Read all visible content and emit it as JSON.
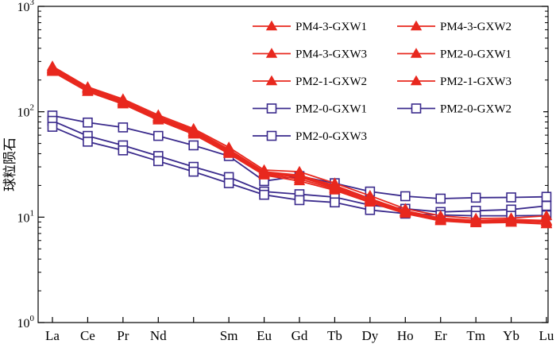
{
  "chart_data": {
    "type": "line",
    "ylabel": "球粒陨石",
    "yscale": "log",
    "ylim": [
      1,
      1000
    ],
    "yticks": [
      {
        "value": 1,
        "base": "10",
        "exp": "0"
      },
      {
        "value": 10,
        "base": "10",
        "exp": "1"
      },
      {
        "value": 100,
        "base": "10",
        "exp": "2"
      },
      {
        "value": 1000,
        "base": "10",
        "exp": "3"
      }
    ],
    "categories": [
      "La",
      "Ce",
      "Pr",
      "Nd",
      "",
      "Sm",
      "Eu",
      "Gd",
      "Tb",
      "Dy",
      "Ho",
      "Er",
      "Tm",
      "Yb",
      "Lu"
    ],
    "legend_position": "top-right",
    "series": [
      {
        "name": "PM4-3-GXW1",
        "color": "#e8281e",
        "marker": "filled-triangle",
        "values": [
          262,
          168,
          128,
          90,
          67,
          44,
          27,
          25,
          20,
          15,
          11.5,
          9.8,
          9.3,
          9.5,
          9.3
        ]
      },
      {
        "name": "PM4-3-GXW2",
        "color": "#e8281e",
        "marker": "filled-triangle",
        "values": [
          245,
          158,
          121,
          85,
          63,
          41,
          25.5,
          23,
          18.5,
          14,
          11,
          9.3,
          8.8,
          9.0,
          8.7
        ]
      },
      {
        "name": "PM4-3-GXW3",
        "color": "#e8281e",
        "marker": "filled-triangle",
        "values": [
          252,
          163,
          124,
          87,
          64,
          42,
          26,
          24,
          19,
          14.5,
          11.2,
          9.5,
          9.0,
          9.2,
          9.0
        ]
      },
      {
        "name": "PM2-0-GXW1",
        "color": "#e8281e",
        "marker": "filled-triangle",
        "values": [
          270,
          172,
          132,
          93,
          69,
          46,
          28,
          27,
          21,
          16,
          12,
          10.3,
          9.7,
          9.8,
          10.3
        ]
      },
      {
        "name": "PM2-1-GXW2",
        "color": "#e8281e",
        "marker": "filled-triangle",
        "values": [
          240,
          155,
          118,
          83,
          61,
          40,
          25,
          22,
          18,
          13.8,
          10.8,
          9.2,
          8.8,
          8.9,
          8.6
        ]
      },
      {
        "name": "PM2-1-GXW3",
        "color": "#e8281e",
        "marker": "filled-triangle",
        "values": [
          256,
          166,
          126,
          88,
          65,
          43,
          26.5,
          24.5,
          19.5,
          15,
          11.3,
          9.6,
          9.1,
          9.3,
          9.1
        ]
      },
      {
        "name": "PM2-0-GXW1",
        "color": "#3a2a8c",
        "marker": "open-square",
        "values": [
          92,
          79,
          71,
          59,
          48,
          38,
          22,
          24.5,
          21,
          17.5,
          15.8,
          15,
          15.3,
          15.4,
          15.6
        ]
      },
      {
        "name": "PM2-0-GXW2",
        "color": "#3a2a8c",
        "marker": "open-square",
        "values": [
          82,
          59,
          48,
          38,
          30,
          24,
          17.5,
          16.5,
          15.5,
          13,
          12,
          11.2,
          11.5,
          11.8,
          12.8
        ]
      },
      {
        "name": "PM2-0-GXW3",
        "color": "#3a2a8c",
        "marker": "open-square",
        "values": [
          72,
          52,
          43,
          34,
          27,
          21,
          16.3,
          14.5,
          13.8,
          11.7,
          10.8,
          10.5,
          10.3,
          10.3,
          10.4
        ]
      }
    ]
  }
}
